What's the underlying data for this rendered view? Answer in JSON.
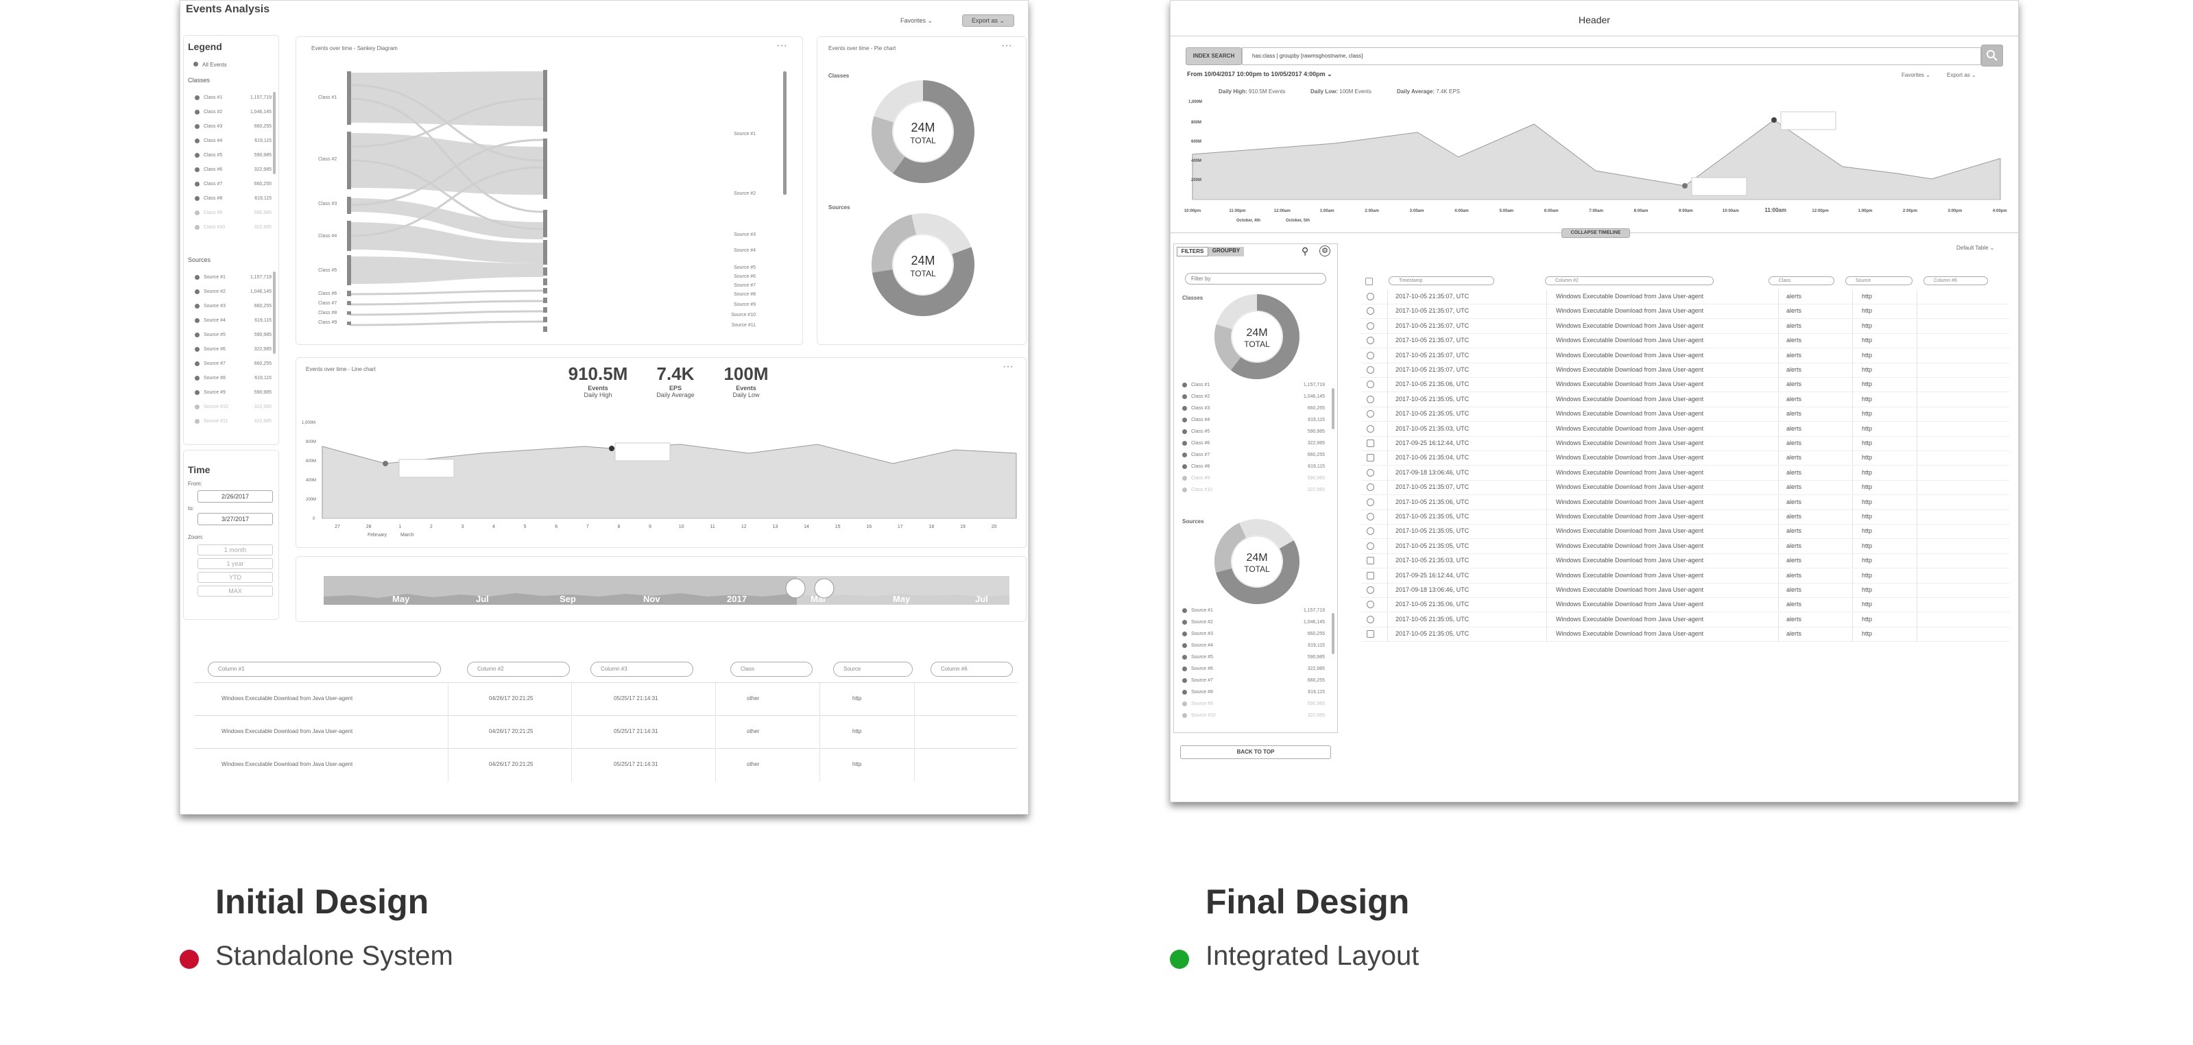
{
  "initial": {
    "title": "Events Analysis",
    "favorites": "Favorites ⌄",
    "export": "Export as ⌄",
    "legend": {
      "title": "Legend",
      "all_events": "All Events",
      "classes_title": "Classes",
      "sources_title": "Sources",
      "classes": [
        [
          "Class #1",
          "1,157,719"
        ],
        [
          "Class #2",
          "1,046,145"
        ],
        [
          "Class #3",
          "660,255"
        ],
        [
          "Class #4",
          "619,115"
        ],
        [
          "Class #5",
          "590,985"
        ],
        [
          "Class #6",
          "322,985"
        ],
        [
          "Class #7",
          "660,255"
        ],
        [
          "Class #8",
          "619,115"
        ],
        [
          "Class #9",
          "590,985"
        ],
        [
          "Class #10",
          "322,985"
        ]
      ],
      "sources": [
        [
          "Source #1",
          "1,157,719"
        ],
        [
          "Source #2",
          "1,046,145"
        ],
        [
          "Source #3",
          "660,255"
        ],
        [
          "Source #4",
          "619,115"
        ],
        [
          "Source #5",
          "590,985"
        ],
        [
          "Source #6",
          "322,985"
        ],
        [
          "Source #7",
          "660,255"
        ],
        [
          "Source #8",
          "619,115"
        ],
        [
          "Source #9",
          "590,985"
        ],
        [
          "Source #10",
          "322,985"
        ],
        [
          "Source #11",
          "322,985"
        ]
      ]
    },
    "time": {
      "title": "Time",
      "from_label": "From:",
      "from": "2/26/2017",
      "to_label": "to:",
      "to": "3/27/2017",
      "zoom_label": "Zoom:",
      "zooms": [
        "1 month",
        "1 year",
        "YTD",
        "MAX"
      ]
    },
    "sankey": {
      "title": "Events over time - Sankey Diagram",
      "left": [
        "Class #1",
        "Class #2",
        "Class #3",
        "Class #4",
        "Class #5",
        "Class #6",
        "Class #7",
        "Class #8",
        "Class #9"
      ],
      "right": [
        "Source #1",
        "Source #2",
        "Source #3",
        "Source #4",
        "Source #5",
        "Source #6",
        "Source #7",
        "Source #8",
        "Source #9",
        "Source #10",
        "Source #11"
      ]
    },
    "pie": {
      "title": "Events over time - Pie chart",
      "classes_label": "Classes",
      "sources_label": "Sources",
      "total_value": "24M",
      "total_label": "TOTAL"
    },
    "line": {
      "title": "Events over time - Line chart",
      "kpis": [
        {
          "value": "910.5M",
          "label": "Events",
          "sub": "Daily High"
        },
        {
          "value": "7.4K",
          "label": "EPS",
          "sub": "Daily Average"
        },
        {
          "value": "100M",
          "label": "Events",
          "sub": "Daily Low"
        }
      ],
      "y_ticks": [
        "1,000M",
        "800M",
        "600M",
        "400M",
        "200M",
        "0"
      ],
      "x_ticks": [
        "27",
        "28",
        "1",
        "2",
        "3",
        "4",
        "5",
        "6",
        "7",
        "8",
        "9",
        "10",
        "11",
        "12",
        "13",
        "14",
        "15",
        "16",
        "17",
        "18",
        "19",
        "20"
      ],
      "months": [
        "February",
        "March"
      ]
    },
    "timeline_months": [
      "May",
      "Jul",
      "Sep",
      "Nov",
      "2017",
      "Mar",
      "May",
      "Jul"
    ],
    "table": {
      "headers": [
        "Column #1",
        "Column #2",
        "Column #3",
        "Class",
        "Source",
        "Column #6"
      ],
      "rows": [
        [
          "Windows Executable Download from Java User-agent",
          "04/26/17  20:21:25",
          "05/25/17  21:14:31",
          "other",
          "http"
        ],
        [
          "Windows Executable Download from Java User-agent",
          "04/26/17  20:21:25",
          "05/25/17  21:14:31",
          "other",
          "http"
        ],
        [
          "Windows Executable Download from Java User-agent",
          "04/26/17  20:21:25",
          "05/25/17  21:14:31",
          "other",
          "http"
        ]
      ]
    }
  },
  "final": {
    "header": "Header",
    "index_search": "INDEX SEARCH",
    "query": "has:class | groupby [rawmsghostname, class]",
    "range": "From 10/04/2017 10:00pm to 10/05/2017 4:00pm  ⌄",
    "favorites": "Favorites ⌄",
    "export": "Export as ⌄",
    "stats": [
      {
        "label": "Daily High:",
        "value": "910.5M Events"
      },
      {
        "label": "Daily Low:",
        "value": "100M Events"
      },
      {
        "label": "Daily Average:",
        "value": "7.4K EPS"
      }
    ],
    "y_ticks": [
      "1,000M",
      "800M",
      "600M",
      "400M",
      "200M"
    ],
    "x_ticks": [
      "10:00pm",
      "11:00pm",
      "12:00am",
      "1:00am",
      "2:00am",
      "3:00am",
      "4:00am",
      "5:00am",
      "6:00am",
      "7:00am",
      "8:00am",
      "9:00am",
      "10:00am",
      "11:00am",
      "12:00pm",
      "1:00pm",
      "2:00pm",
      "3:00pm",
      "4:00pm"
    ],
    "x_sub": [
      "October, 4th",
      "October, 5th"
    ],
    "collapse": "COLLAPSE TIMELINE",
    "tabs": [
      "FILTERS",
      "GROUPBY"
    ],
    "filter_placeholder": "Filter by",
    "classes_label": "Classes",
    "sources_label": "Sources",
    "total_value": "24M",
    "total_label": "TOTAL",
    "classes": [
      [
        "Class #1",
        "1,157,719"
      ],
      [
        "Class #2",
        "1,046,145"
      ],
      [
        "Class #3",
        "660,255"
      ],
      [
        "Class #4",
        "619,115"
      ],
      [
        "Class #5",
        "590,985"
      ],
      [
        "Class #6",
        "322,985"
      ],
      [
        "Class #7",
        "660,255"
      ],
      [
        "Class #8",
        "619,115"
      ],
      [
        "Class #9",
        "590,985"
      ],
      [
        "Class #10",
        "322,985"
      ]
    ],
    "sources": [
      [
        "Source #1",
        "1,157,719"
      ],
      [
        "Source #2",
        "1,046,145"
      ],
      [
        "Source #3",
        "660,255"
      ],
      [
        "Source #4",
        "619,115"
      ],
      [
        "Source #5",
        "590,985"
      ],
      [
        "Source #6",
        "322,985"
      ],
      [
        "Source #7",
        "660,255"
      ],
      [
        "Source #8",
        "619,115"
      ],
      [
        "Source #9",
        "590,985"
      ],
      [
        "Source #10",
        "322,985"
      ]
    ],
    "back_to_top": "BACK TO TOP",
    "default_table": "Default Table ⌄",
    "table_headers": [
      "Timestamp",
      "Column #2",
      "Class",
      "Source",
      "Column #6"
    ],
    "rows": [
      [
        "2017-10-05  21:35:07, UTC",
        "Windows Executable Download from Java User-agent",
        "alerts",
        "http"
      ],
      [
        "2017-10-05  21:35:07, UTC",
        "Windows Executable Download from Java User-agent",
        "alerts",
        "http"
      ],
      [
        "2017-10-05  21:35:07, UTC",
        "Windows Executable Download from Java User-agent",
        "alerts",
        "http"
      ],
      [
        "2017-10-05  21:35:07, UTC",
        "Windows Executable Download from Java User-agent",
        "alerts",
        "http"
      ],
      [
        "2017-10-05  21:35:07, UTC",
        "Windows Executable Download from Java User-agent",
        "alerts",
        "http"
      ],
      [
        "2017-10-05  21:35:07, UTC",
        "Windows Executable Download from Java User-agent",
        "alerts",
        "http"
      ],
      [
        "2017-10-05  21:35:06, UTC",
        "Windows Executable Download from Java User-agent",
        "alerts",
        "http"
      ],
      [
        "2017-10-05  21:35:05, UTC",
        "Windows Executable Download from Java User-agent",
        "alerts",
        "http"
      ],
      [
        "2017-10-05  21:35:05, UTC",
        "Windows Executable Download from Java User-agent",
        "alerts",
        "http"
      ],
      [
        "2017-10-05  21:35:03, UTC",
        "Windows Executable Download from Java User-agent",
        "alerts",
        "http"
      ],
      [
        "2017-09-25  16:12:44, UTC",
        "Windows Executable Download from Java User-agent",
        "alerts",
        "http"
      ],
      [
        "2017-10-05  21:35:04, UTC",
        "Windows Executable Download from Java User-agent",
        "alerts",
        "http"
      ],
      [
        "2017-09-18  13:06:46, UTC",
        "Windows Executable Download from Java User-agent",
        "alerts",
        "http"
      ],
      [
        "2017-10-05  21:35:07, UTC",
        "Windows Executable Download from Java User-agent",
        "alerts",
        "http"
      ],
      [
        "2017-10-05  21:35:06, UTC",
        "Windows Executable Download from Java User-agent",
        "alerts",
        "http"
      ],
      [
        "2017-10-05  21:35:05, UTC",
        "Windows Executable Download from Java User-agent",
        "alerts",
        "http"
      ],
      [
        "2017-10-05  21:35:05, UTC",
        "Windows Executable Download from Java User-agent",
        "alerts",
        "http"
      ],
      [
        "2017-10-05  21:35:05, UTC",
        "Windows Executable Download from Java User-agent",
        "alerts",
        "http"
      ],
      [
        "2017-10-05  21:35:03, UTC",
        "Windows Executable Download from Java User-agent",
        "alerts",
        "http"
      ],
      [
        "2017-09-25  16:12:44, UTC",
        "Windows Executable Download from Java User-agent",
        "alerts",
        "http"
      ],
      [
        "2017-09-18  13:06:46, UTC",
        "Windows Executable Download from Java User-agent",
        "alerts",
        "http"
      ],
      [
        "2017-10-05  21:35:06, UTC",
        "Windows Executable Download from Java User-agent",
        "alerts",
        "http"
      ],
      [
        "2017-10-05  21:35:05, UTC",
        "Windows Executable Download from Java User-agent",
        "alerts",
        "http"
      ],
      [
        "2017-10-05  21:35:05, UTC",
        "Windows Executable Download from Java User-agent",
        "alerts",
        "http"
      ]
    ]
  },
  "captions": [
    {
      "title": "Initial Design",
      "subtitle": "Standalone System",
      "color": "#c8102e"
    },
    {
      "title": "Final Design",
      "subtitle": "Integrated Layout",
      "color": "#1aa52b"
    }
  ]
}
